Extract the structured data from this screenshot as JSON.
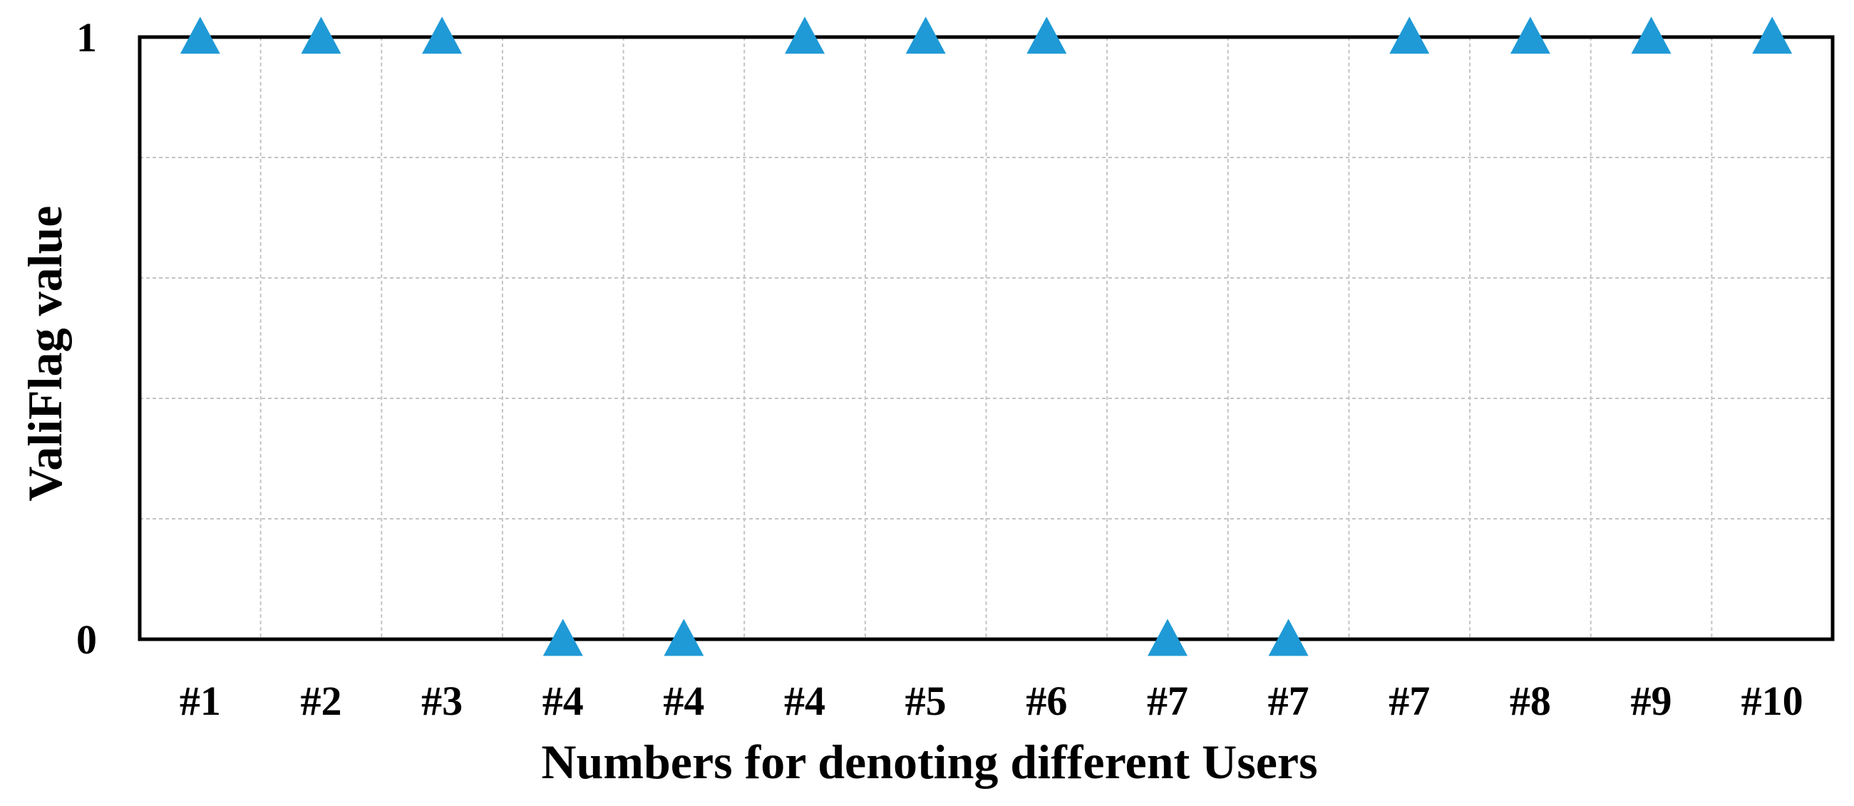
{
  "chart_data": {
    "type": "scatter",
    "marker": "triangle",
    "marker_color": "#1f9ad6",
    "title": "",
    "xlabel": "Numbers for denoting different Users",
    "ylabel": "ValiFlag value",
    "categories": [
      "#1",
      "#2",
      "#3",
      "#4",
      "#4",
      "#4",
      "#5",
      "#6",
      "#7",
      "#7",
      "#7",
      "#8",
      "#9",
      "#10"
    ],
    "values": [
      1,
      1,
      1,
      0,
      0,
      1,
      1,
      1,
      0,
      0,
      1,
      1,
      1,
      1
    ],
    "ylim": [
      0,
      1
    ],
    "yticks": [
      "0",
      "1"
    ],
    "grid": true,
    "legend": "none"
  }
}
